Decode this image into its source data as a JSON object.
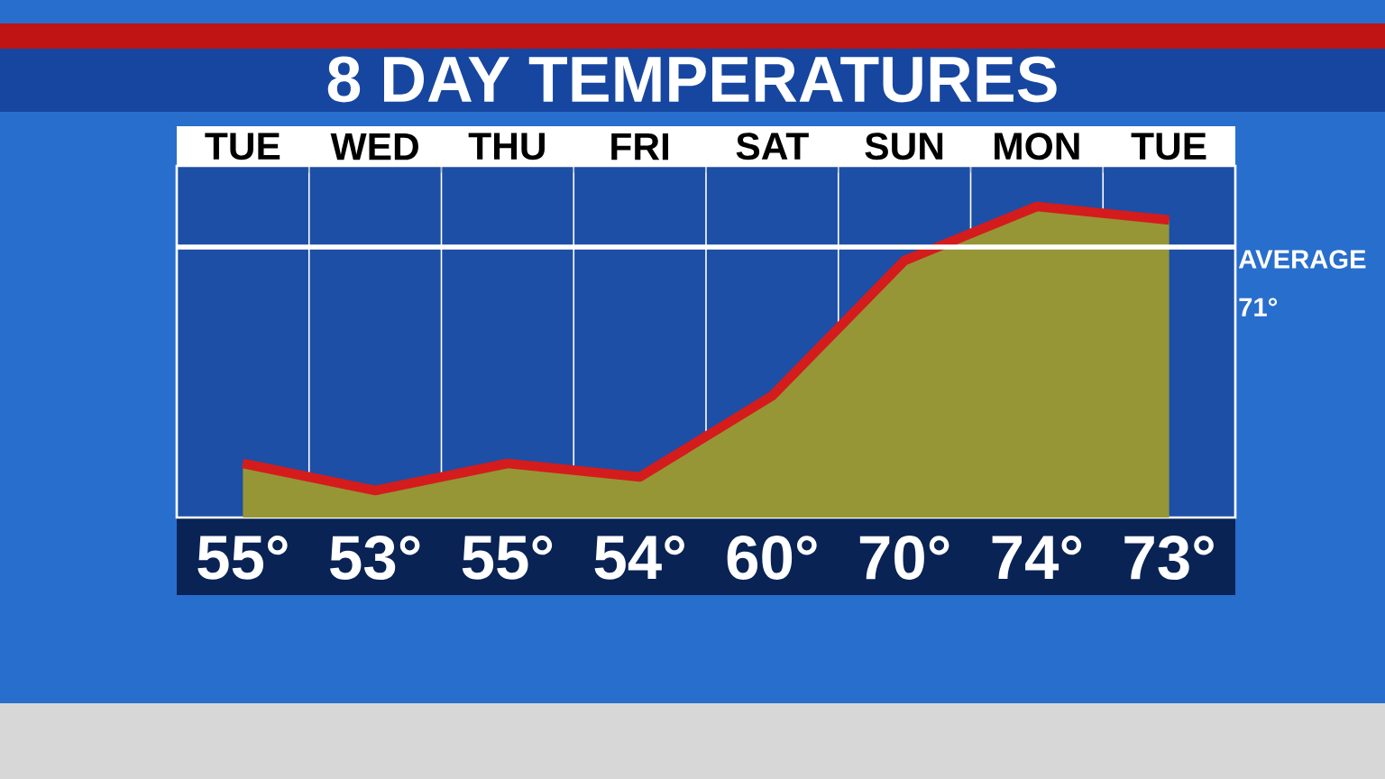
{
  "chart_data": {
    "type": "area",
    "title": "8 DAY TEMPERATURES",
    "categories": [
      "TUE",
      "WED",
      "THU",
      "FRI",
      "SAT",
      "SUN",
      "MON",
      "TUE"
    ],
    "series": [
      {
        "color": "#d41c1c",
        "values": [
          55,
          53,
          55,
          54,
          60,
          70,
          74,
          73
        ],
        "value_labels": [
          "55°",
          "53°",
          "55°",
          "54°",
          "60°",
          "70°",
          "74°",
          "73°"
        ]
      }
    ],
    "ylim": [
      51,
      77
    ],
    "grid": "x",
    "ref_lines": [
      {
        "axis": "y",
        "value": 71,
        "label": "AVERAGE 71°",
        "color": "#ffffff"
      }
    ]
  }
}
